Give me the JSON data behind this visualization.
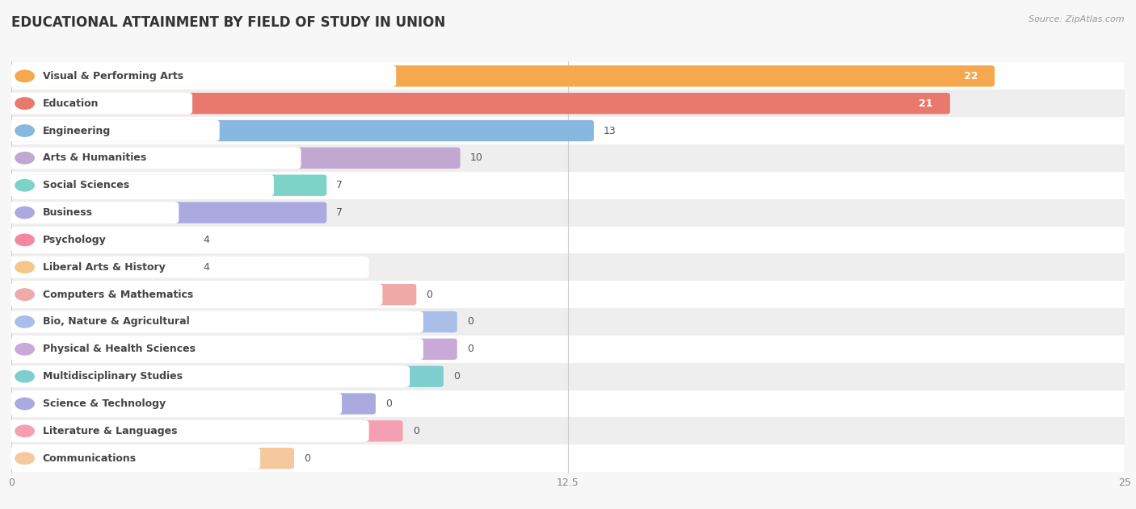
{
  "title": "EDUCATIONAL ATTAINMENT BY FIELD OF STUDY IN UNION",
  "source": "Source: ZipAtlas.com",
  "categories": [
    "Visual & Performing Arts",
    "Education",
    "Engineering",
    "Arts & Humanities",
    "Social Sciences",
    "Business",
    "Psychology",
    "Liberal Arts & History",
    "Computers & Mathematics",
    "Bio, Nature & Agricultural",
    "Physical & Health Sciences",
    "Multidisciplinary Studies",
    "Science & Technology",
    "Literature & Languages",
    "Communications"
  ],
  "values": [
    22,
    21,
    13,
    10,
    7,
    7,
    4,
    4,
    0,
    0,
    0,
    0,
    0,
    0,
    0
  ],
  "bar_colors": [
    "#F5A84D",
    "#E8796C",
    "#88B7DF",
    "#C2A7D0",
    "#7DD3C7",
    "#ABA9DF",
    "#F587A0",
    "#F5C78D",
    "#EFAAA8",
    "#A9BFEA",
    "#C8A9D8",
    "#7DCFCF",
    "#AAAADE",
    "#F5A0B2",
    "#F5C89E"
  ],
  "xlim": [
    0,
    25
  ],
  "xticks": [
    0,
    12.5,
    25
  ],
  "background_color": "#f7f7f7",
  "title_fontsize": 12,
  "label_fontsize": 9,
  "value_fontsize": 9
}
